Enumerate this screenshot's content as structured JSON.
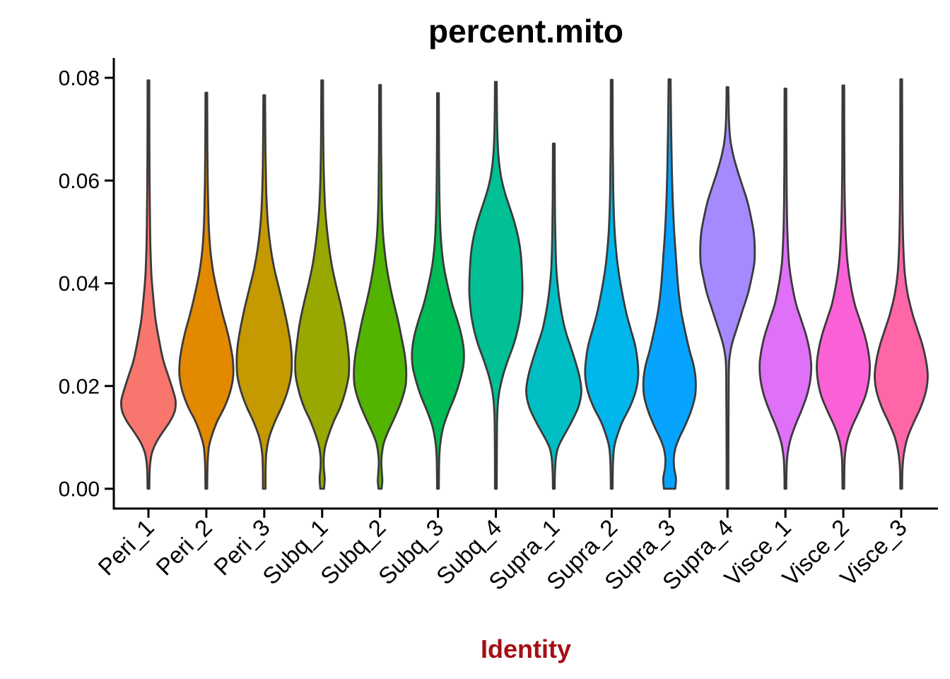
{
  "title": "percent.mito",
  "x_axis_label_color": "#A50F15",
  "axis_color": "#000000",
  "violin_outline_color": "#3A3A3A",
  "chart_data": {
    "type": "violin",
    "title": "percent.mito",
    "xlabel": "Identity",
    "ylabel": "",
    "ylim": [
      0,
      0.08
    ],
    "grid": false,
    "legend": false,
    "y_tick_values": [
      0,
      0.02,
      0.04,
      0.06,
      0.08
    ],
    "y_tick_labels": [
      "0.00",
      "0.02",
      "0.04",
      "0.06",
      "0.08"
    ],
    "categories": [
      "Peri_1",
      "Peri_2",
      "Peri_3",
      "Subq_1",
      "Subq_2",
      "Subq_3",
      "Subq_4",
      "Supra_1",
      "Supra_2",
      "Supra_3",
      "Supra_4",
      "Visce_1",
      "Visce_2",
      "Visce_3"
    ],
    "profile_format": "[percent.mito value, half-width px]",
    "series": [
      {
        "name": "Peri_1",
        "color": "#F8766D",
        "max": 0.0795,
        "min": 0,
        "peak_at": 0.017,
        "flat_bottom": false,
        "profile": [
          [
            0.0795,
            1.2
          ],
          [
            0.07,
            1.3
          ],
          [
            0.06,
            1.6
          ],
          [
            0.052,
            2.2
          ],
          [
            0.046,
            3
          ],
          [
            0.041,
            4.5
          ],
          [
            0.037,
            7
          ],
          [
            0.033,
            10
          ],
          [
            0.029,
            15
          ],
          [
            0.025,
            21
          ],
          [
            0.022,
            28
          ],
          [
            0.019,
            35
          ],
          [
            0.017,
            38.5
          ],
          [
            0.015,
            37
          ],
          [
            0.013,
            30
          ],
          [
            0.011,
            20
          ],
          [
            0.009,
            11
          ],
          [
            0.007,
            5
          ],
          [
            0.005,
            2.5
          ],
          [
            0.003,
            1.6
          ],
          [
            0.0,
            1.2
          ]
        ]
      },
      {
        "name": "Peri_2",
        "color": "#E38900",
        "max": 0.0771,
        "min": 0,
        "peak_at": 0.023,
        "flat_bottom": false,
        "profile": [
          [
            0.0771,
            1.2
          ],
          [
            0.066,
            1.5
          ],
          [
            0.058,
            2.2
          ],
          [
            0.051,
            3.5
          ],
          [
            0.046,
            6
          ],
          [
            0.042,
            10
          ],
          [
            0.038,
            16
          ],
          [
            0.034,
            23
          ],
          [
            0.031,
            29
          ],
          [
            0.028,
            34
          ],
          [
            0.025,
            37.5
          ],
          [
            0.022,
            38
          ],
          [
            0.019,
            34
          ],
          [
            0.016,
            26
          ],
          [
            0.013,
            15
          ],
          [
            0.01,
            7
          ],
          [
            0.008,
            3.5
          ],
          [
            0.005,
            1.8
          ],
          [
            0.0,
            1.2
          ]
        ]
      },
      {
        "name": "Peri_3",
        "color": "#C49A00",
        "max": 0.0766,
        "min": 0,
        "peak_at": 0.025,
        "flat_bottom": false,
        "profile": [
          [
            0.0766,
            1.2
          ],
          [
            0.066,
            1.7
          ],
          [
            0.058,
            2.8
          ],
          [
            0.052,
            5
          ],
          [
            0.047,
            9
          ],
          [
            0.043,
            14
          ],
          [
            0.039,
            21
          ],
          [
            0.035,
            28
          ],
          [
            0.031,
            34
          ],
          [
            0.028,
            37.5
          ],
          [
            0.025,
            39
          ],
          [
            0.022,
            38
          ],
          [
            0.019,
            33
          ],
          [
            0.016,
            25
          ],
          [
            0.013,
            15
          ],
          [
            0.01,
            7
          ],
          [
            0.007,
            3
          ],
          [
            0.004,
            2
          ],
          [
            0.0,
            1.8
          ]
        ]
      },
      {
        "name": "Subq_1",
        "color": "#99A800",
        "max": 0.0795,
        "min": 0,
        "peak_at": 0.025,
        "flat_bottom": false,
        "profile": [
          [
            0.0795,
            1.2
          ],
          [
            0.068,
            1.6
          ],
          [
            0.06,
            2.6
          ],
          [
            0.054,
            4.5
          ],
          [
            0.049,
            8
          ],
          [
            0.044,
            13
          ],
          [
            0.04,
            19
          ],
          [
            0.036,
            26
          ],
          [
            0.032,
            32
          ],
          [
            0.028,
            36
          ],
          [
            0.025,
            38
          ],
          [
            0.022,
            37.5
          ],
          [
            0.019,
            33
          ],
          [
            0.016,
            26
          ],
          [
            0.013,
            16
          ],
          [
            0.01,
            8
          ],
          [
            0.008,
            4
          ],
          [
            0.006,
            2.2
          ],
          [
            0.004,
            2.4
          ],
          [
            0.002,
            3.6
          ],
          [
            0.0,
            2.6
          ]
        ]
      },
      {
        "name": "Subq_2",
        "color": "#53B400",
        "max": 0.0786,
        "min": 0,
        "peak_at": 0.023,
        "flat_bottom": false,
        "profile": [
          [
            0.0786,
            1.2
          ],
          [
            0.066,
            1.5
          ],
          [
            0.057,
            2.2
          ],
          [
            0.05,
            4
          ],
          [
            0.045,
            7.5
          ],
          [
            0.041,
            12
          ],
          [
            0.037,
            18
          ],
          [
            0.033,
            25
          ],
          [
            0.029,
            31
          ],
          [
            0.026,
            35
          ],
          [
            0.023,
            37
          ],
          [
            0.02,
            36
          ],
          [
            0.017,
            30
          ],
          [
            0.014,
            21
          ],
          [
            0.011,
            11
          ],
          [
            0.009,
            5.5
          ],
          [
            0.007,
            2.8
          ],
          [
            0.005,
            1.8
          ],
          [
            0.003,
            2.6
          ],
          [
            0.0015,
            3.2
          ],
          [
            0.0,
            2.2
          ]
        ]
      },
      {
        "name": "Subq_3",
        "color": "#00BC56",
        "max": 0.077,
        "min": 0,
        "peak_at": 0.027,
        "flat_bottom": false,
        "profile": [
          [
            0.077,
            1.2
          ],
          [
            0.064,
            1.5
          ],
          [
            0.056,
            2.2
          ],
          [
            0.049,
            4
          ],
          [
            0.044,
            7.5
          ],
          [
            0.04,
            13
          ],
          [
            0.036,
            20
          ],
          [
            0.033,
            27
          ],
          [
            0.03,
            33
          ],
          [
            0.027,
            36.5
          ],
          [
            0.024,
            36
          ],
          [
            0.021,
            31
          ],
          [
            0.018,
            24
          ],
          [
            0.015,
            15
          ],
          [
            0.012,
            7.5
          ],
          [
            0.009,
            3.5
          ],
          [
            0.006,
            1.8
          ],
          [
            0.0,
            1.2
          ]
        ]
      },
      {
        "name": "Subq_4",
        "color": "#00C094",
        "max": 0.0792,
        "min": 0,
        "peak_at": 0.038,
        "flat_bottom": false,
        "profile": [
          [
            0.0792,
            1.2
          ],
          [
            0.071,
            1.8
          ],
          [
            0.065,
            3.5
          ],
          [
            0.061,
            7
          ],
          [
            0.058,
            12
          ],
          [
            0.055,
            19
          ],
          [
            0.052,
            26
          ],
          [
            0.049,
            31.5
          ],
          [
            0.046,
            35
          ],
          [
            0.042,
            37
          ],
          [
            0.038,
            37.5
          ],
          [
            0.034,
            35
          ],
          [
            0.031,
            31
          ],
          [
            0.028,
            25
          ],
          [
            0.025,
            17
          ],
          [
            0.022,
            10
          ],
          [
            0.019,
            5
          ],
          [
            0.016,
            2.6
          ],
          [
            0.012,
            1.6
          ],
          [
            0.0,
            1.2
          ]
        ]
      },
      {
        "name": "Supra_1",
        "color": "#00BFC4",
        "max": 0.0672,
        "min": 0,
        "peak_at": 0.019,
        "flat_bottom": false,
        "profile": [
          [
            0.0672,
            1.2
          ],
          [
            0.057,
            1.5
          ],
          [
            0.049,
            2.2
          ],
          [
            0.043,
            3.5
          ],
          [
            0.039,
            6
          ],
          [
            0.035,
            10
          ],
          [
            0.031,
            16
          ],
          [
            0.028,
            23
          ],
          [
            0.025,
            30
          ],
          [
            0.022,
            36
          ],
          [
            0.019,
            39
          ],
          [
            0.016,
            35
          ],
          [
            0.013,
            25
          ],
          [
            0.01,
            13
          ],
          [
            0.008,
            6
          ],
          [
            0.006,
            3
          ],
          [
            0.003,
            1.6
          ],
          [
            0.0,
            1.2
          ]
        ]
      },
      {
        "name": "Supra_2",
        "color": "#00B6EB",
        "max": 0.0796,
        "min": 0,
        "peak_at": 0.022,
        "flat_bottom": false,
        "profile": [
          [
            0.0796,
            1.2
          ],
          [
            0.067,
            1.5
          ],
          [
            0.058,
            2.2
          ],
          [
            0.051,
            3.8
          ],
          [
            0.046,
            6.5
          ],
          [
            0.042,
            10
          ],
          [
            0.038,
            15
          ],
          [
            0.034,
            21
          ],
          [
            0.031,
            27
          ],
          [
            0.028,
            33
          ],
          [
            0.025,
            36.5
          ],
          [
            0.022,
            37.5
          ],
          [
            0.019,
            34
          ],
          [
            0.016,
            26
          ],
          [
            0.013,
            15
          ],
          [
            0.01,
            7
          ],
          [
            0.008,
            3.5
          ],
          [
            0.005,
            1.8
          ],
          [
            0.0,
            1.2
          ]
        ]
      },
      {
        "name": "Supra_3",
        "color": "#06A4FF",
        "max": 0.0797,
        "min": 0,
        "peak_at": 0.021,
        "flat_bottom": true,
        "profile": [
          [
            0.0797,
            1.4
          ],
          [
            0.07,
            2.2
          ],
          [
            0.062,
            3.2
          ],
          [
            0.056,
            4.5
          ],
          [
            0.05,
            6.5
          ],
          [
            0.046,
            8.5
          ],
          [
            0.042,
            10.5
          ],
          [
            0.038,
            13
          ],
          [
            0.034,
            17
          ],
          [
            0.03,
            23
          ],
          [
            0.027,
            28
          ],
          [
            0.024,
            34
          ],
          [
            0.021,
            37
          ],
          [
            0.018,
            36
          ],
          [
            0.015,
            30
          ],
          [
            0.012,
            21
          ],
          [
            0.01,
            14
          ],
          [
            0.008,
            8.5
          ],
          [
            0.006,
            6
          ],
          [
            0.004,
            6.5
          ],
          [
            0.002,
            9
          ],
          [
            0.0,
            8
          ]
        ]
      },
      {
        "name": "Supra_4",
        "color": "#A58AFF",
        "max": 0.0782,
        "min": 0,
        "peak_at": 0.047,
        "flat_bottom": false,
        "profile": [
          [
            0.0782,
            1.2
          ],
          [
            0.072,
            2
          ],
          [
            0.068,
            4
          ],
          [
            0.065,
            8
          ],
          [
            0.062,
            14
          ],
          [
            0.059,
            21
          ],
          [
            0.056,
            28
          ],
          [
            0.053,
            33
          ],
          [
            0.05,
            37
          ],
          [
            0.047,
            38.5
          ],
          [
            0.044,
            38
          ],
          [
            0.041,
            34
          ],
          [
            0.038,
            29
          ],
          [
            0.035,
            22
          ],
          [
            0.032,
            15
          ],
          [
            0.029,
            8
          ],
          [
            0.027,
            4.5
          ],
          [
            0.025,
            2.5
          ],
          [
            0.022,
            1.8
          ],
          [
            0.012,
            1.4
          ],
          [
            0.0,
            1.2
          ]
        ]
      },
      {
        "name": "Visce_1",
        "color": "#DF70F8",
        "max": 0.0779,
        "min": 0,
        "peak_at": 0.024,
        "flat_bottom": false,
        "profile": [
          [
            0.0779,
            1.2
          ],
          [
            0.063,
            1.5
          ],
          [
            0.055,
            2
          ],
          [
            0.049,
            3
          ],
          [
            0.044,
            5
          ],
          [
            0.04,
            9
          ],
          [
            0.036,
            15
          ],
          [
            0.033,
            22
          ],
          [
            0.03,
            29
          ],
          [
            0.027,
            34
          ],
          [
            0.024,
            36.5
          ],
          [
            0.021,
            35
          ],
          [
            0.018,
            30
          ],
          [
            0.015,
            22
          ],
          [
            0.012,
            13
          ],
          [
            0.009,
            6
          ],
          [
            0.006,
            2.5
          ],
          [
            0.003,
            1.5
          ],
          [
            0.0,
            1.2
          ]
        ]
      },
      {
        "name": "Visce_2",
        "color": "#FB61D7",
        "max": 0.0785,
        "min": 0,
        "peak_at": 0.024,
        "flat_bottom": false,
        "profile": [
          [
            0.0785,
            1.2
          ],
          [
            0.063,
            1.5
          ],
          [
            0.055,
            2.2
          ],
          [
            0.049,
            3.5
          ],
          [
            0.044,
            6
          ],
          [
            0.04,
            10
          ],
          [
            0.036,
            16
          ],
          [
            0.033,
            23
          ],
          [
            0.03,
            30
          ],
          [
            0.027,
            35
          ],
          [
            0.024,
            37.5
          ],
          [
            0.021,
            36
          ],
          [
            0.018,
            31
          ],
          [
            0.015,
            22
          ],
          [
            0.012,
            12
          ],
          [
            0.009,
            5
          ],
          [
            0.006,
            2
          ],
          [
            0.003,
            1.4
          ],
          [
            0.0,
            1.2
          ]
        ]
      },
      {
        "name": "Visce_3",
        "color": "#FF66A8",
        "max": 0.0797,
        "min": 0,
        "peak_at": 0.022,
        "flat_bottom": false,
        "profile": [
          [
            0.0797,
            1.2
          ],
          [
            0.061,
            1.5
          ],
          [
            0.053,
            2
          ],
          [
            0.047,
            3
          ],
          [
            0.042,
            5
          ],
          [
            0.038,
            9
          ],
          [
            0.034,
            16
          ],
          [
            0.031,
            23
          ],
          [
            0.028,
            30
          ],
          [
            0.025,
            35
          ],
          [
            0.022,
            37.5
          ],
          [
            0.019,
            35
          ],
          [
            0.016,
            28
          ],
          [
            0.013,
            18
          ],
          [
            0.01,
            9
          ],
          [
            0.007,
            4
          ],
          [
            0.004,
            1.8
          ],
          [
            0.0,
            1.2
          ]
        ]
      }
    ]
  }
}
